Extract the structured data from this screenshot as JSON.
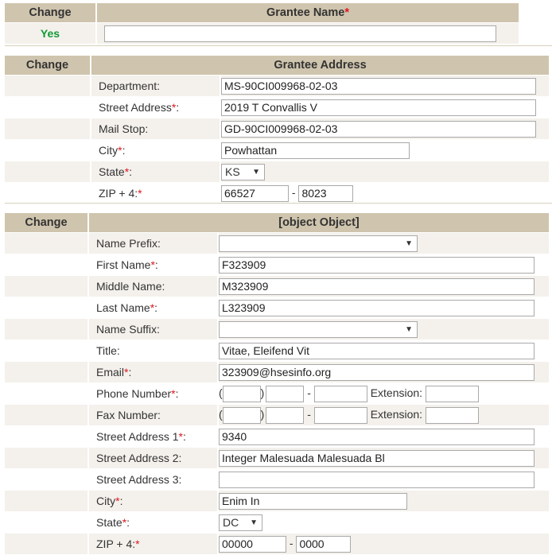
{
  "grantee_name": {
    "change_header": "Change",
    "title": "Grantee Name",
    "change_value": "Yes",
    "value": ""
  },
  "grantee_address": {
    "change_header": "Change",
    "title": "Grantee Address",
    "department": {
      "label": "Department:",
      "value": "MS-90CI009968-02-03"
    },
    "street": {
      "label": "Street Address",
      "value": "2019 T Convallis V"
    },
    "mail_stop": {
      "label": "Mail Stop:",
      "value": "GD-90CI009968-02-03"
    },
    "city": {
      "label": "City",
      "value": "Powhattan"
    },
    "state": {
      "label": "State",
      "value": "KS"
    },
    "zip": {
      "label": "ZIP + 4:",
      "zip5": "66527",
      "zip4": "8023"
    }
  },
  "program_director": {
    "change_header": "Change",
    "title": {
      "label": "Title:",
      "value": "Vitae, Eleifend Vit"
    },
    "name_prefix": {
      "label": "Name Prefix:",
      "value": ""
    },
    "first_name": {
      "label": "First Name",
      "value": "F323909"
    },
    "middle_name": {
      "label": "Middle Name:",
      "value": "M323909"
    },
    "last_name": {
      "label": "Last Name",
      "value": "L323909"
    },
    "name_suffix": {
      "label": "Name Suffix:",
      "value": ""
    },
    "email": {
      "label": "Email",
      "value": "323909@hsesinfo.org"
    },
    "phone": {
      "label": "Phone Number",
      "extension_label": "Extension:"
    },
    "fax": {
      "label": "Fax Number:",
      "extension_label": "Extension:"
    },
    "street1": {
      "label": "Street Address 1",
      "value": "9340"
    },
    "street2": {
      "label": "Street Address 2:",
      "value": "Integer Malesuada Malesuada Bl"
    },
    "street3": {
      "label": "Street Address 3:",
      "value": ""
    },
    "city": {
      "label": "City",
      "value": "Enim In"
    },
    "state": {
      "label": "State",
      "value": "DC"
    },
    "zip": {
      "label": "ZIP + 4:",
      "zip5": "00000",
      "zip4": "0000"
    }
  },
  "required_marker": "*",
  "colon": ":",
  "paren_open": "(",
  "paren_close": ")",
  "dash": "-",
  "dropdown_arrow": "▼"
}
